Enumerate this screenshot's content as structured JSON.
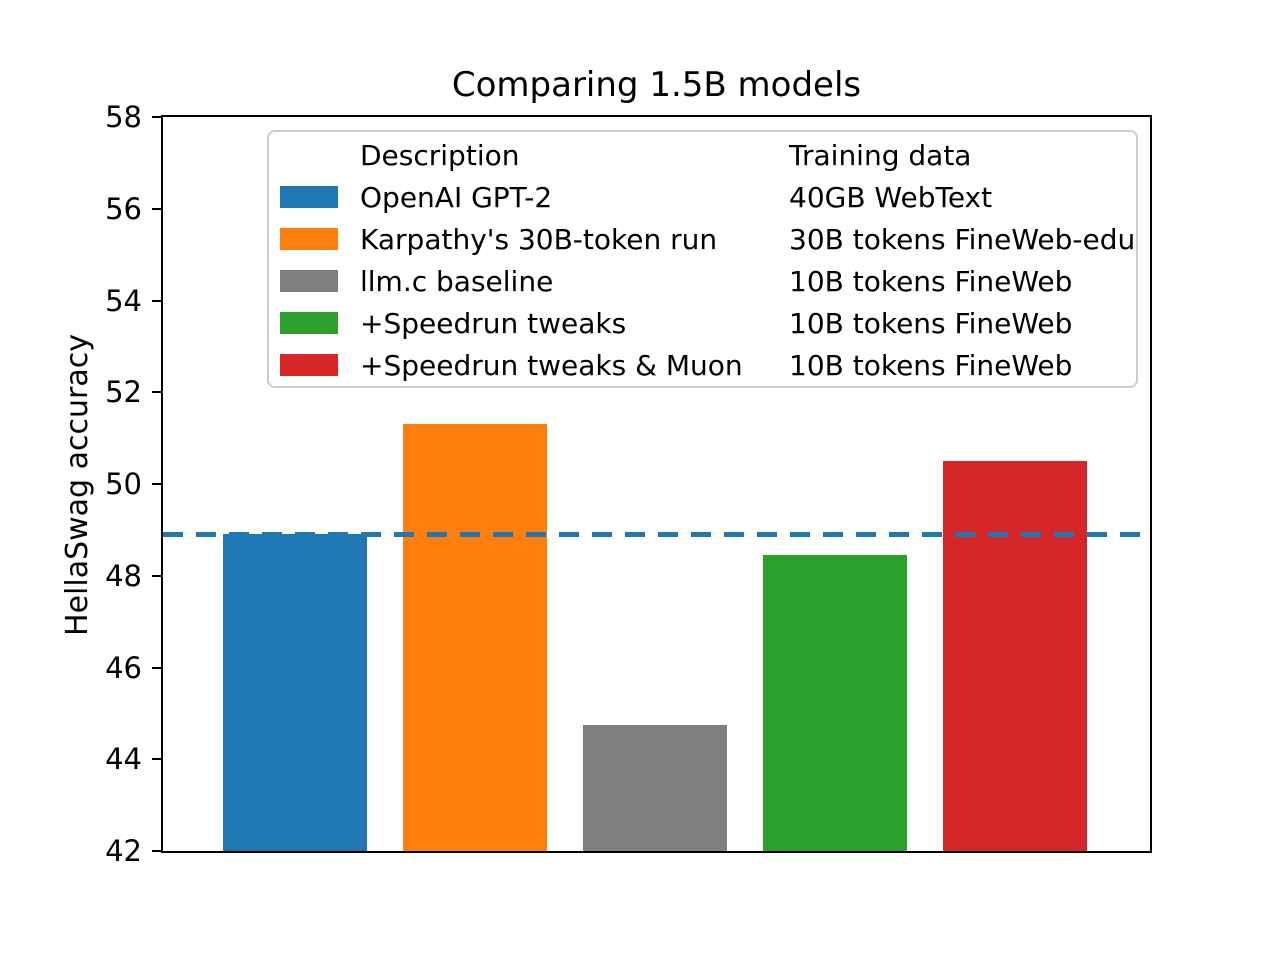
{
  "chart_data": {
    "type": "bar",
    "title": "Comparing 1.5B models",
    "ylabel": "HellaSwag accuracy",
    "ylim": [
      42,
      58
    ],
    "yticks": [
      42,
      44,
      46,
      48,
      50,
      52,
      54,
      56,
      58
    ],
    "grid": false,
    "legend": {
      "position": "upper-center-inside",
      "headers": {
        "description": "Description",
        "training_data": "Training data"
      }
    },
    "reference_line": {
      "value": 48.9,
      "color": "#1f77b4",
      "style": "dashed"
    },
    "bars": [
      {
        "description": "OpenAI GPT-2",
        "training_data": "40GB WebText",
        "color": "#1f77b4",
        "value": 48.9
      },
      {
        "description": "Karpathy's 30B-token run",
        "training_data": "30B tokens FineWeb-edu",
        "color": "#ff7f0e",
        "value": 51.3
      },
      {
        "description": "llm.c baseline",
        "training_data": "10B tokens FineWeb",
        "color": "#7f7f7f",
        "value": 44.75
      },
      {
        "description": "+Speedrun tweaks",
        "training_data": "10B tokens FineWeb",
        "color": "#2ca02c",
        "value": 48.45
      },
      {
        "description": "+Speedrun tweaks & Muon",
        "training_data": "10B tokens FineWeb",
        "color": "#d62728",
        "value": 50.5
      }
    ]
  }
}
